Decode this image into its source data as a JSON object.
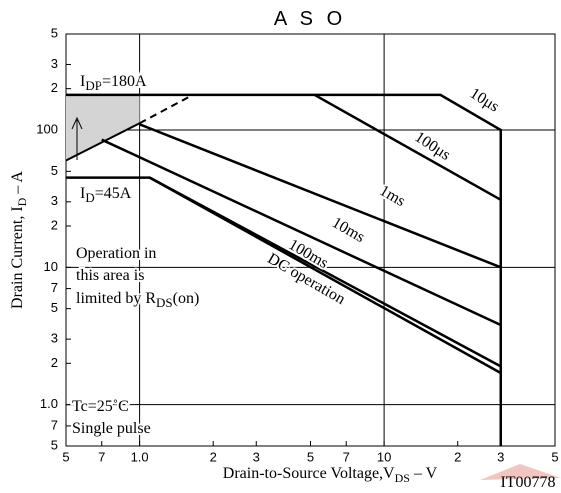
{
  "chart_data": {
    "type": "line",
    "title": "A S O",
    "xlabel": [
      "Drain-to-Source Voltage,V",
      "DS",
      " –  V"
    ],
    "ylabel": [
      "Drain Current, I",
      "D",
      " –  A"
    ],
    "log_x": true,
    "log_y": true,
    "grid": true,
    "xlim": [
      0.5,
      50
    ],
    "ylim": [
      0.5,
      500
    ],
    "xticks": [
      {
        "value": 0.5,
        "label": "5"
      },
      {
        "value": 0.7,
        "label": "7"
      },
      {
        "value": 1,
        "label": "1.0"
      },
      2,
      3,
      5,
      7,
      10,
      {
        "value": 20,
        "label": "2"
      },
      {
        "value": 30,
        "label": "3"
      },
      {
        "value": 50,
        "label": "5"
      }
    ],
    "yticks": [
      {
        "value": 0.5,
        "label": "5"
      },
      {
        "value": 0.7,
        "label": "7"
      },
      {
        "value": 1,
        "label": "1.0"
      },
      2,
      3,
      5,
      7,
      10,
      {
        "value": 20,
        "label": "2"
      },
      {
        "value": 30,
        "label": "3"
      },
      {
        "value": 50,
        "label": "5"
      },
      100,
      {
        "value": 200,
        "label": "2"
      },
      {
        "value": 300,
        "label": "3"
      },
      {
        "value": 500,
        "label": "5"
      }
    ],
    "series": [
      {
        "name": "10μs",
        "color": "#000000",
        "x": [
          0.5,
          17,
          30,
          30
        ],
        "values": [
          180,
          180,
          100,
          0.5
        ]
      },
      {
        "name": "100μs",
        "color": "#000000",
        "x": [
          5.2,
          30
        ],
        "values": [
          180,
          31
        ]
      },
      {
        "name": "1ms",
        "color": "#000000",
        "x": [
          1.0,
          30
        ],
        "values": [
          110,
          10
        ]
      },
      {
        "name": "10ms",
        "color": "#000000",
        "x": [
          0.7,
          30
        ],
        "values": [
          85,
          3.8
        ]
      },
      {
        "name": "100ms",
        "color": "#000000",
        "x": [
          0.5,
          1.1,
          30
        ],
        "values": [
          45,
          45,
          1.9
        ]
      },
      {
        "name": "DC operation",
        "color": "#000000",
        "x": [
          1.1,
          30
        ],
        "values": [
          45,
          1.7
        ]
      }
    ],
    "limit": {
      "x": [
        0.5,
        1.0
      ],
      "values": [
        60,
        112
      ]
    },
    "limit_dashed": {
      "x": [
        1.0,
        1.65
      ],
      "values": [
        112,
        180
      ]
    },
    "annotations": {
      "idp": [
        "I",
        "DP",
        "=180A"
      ],
      "id": [
        "I",
        "D",
        "=45A"
      ],
      "area": [
        "Operation in",
        "this area is",
        "limited by R",
        "DS",
        "(on)"
      ],
      "tc": "Tc=25˚C",
      "pulse": "Single pulse",
      "code": "IT00778"
    }
  }
}
